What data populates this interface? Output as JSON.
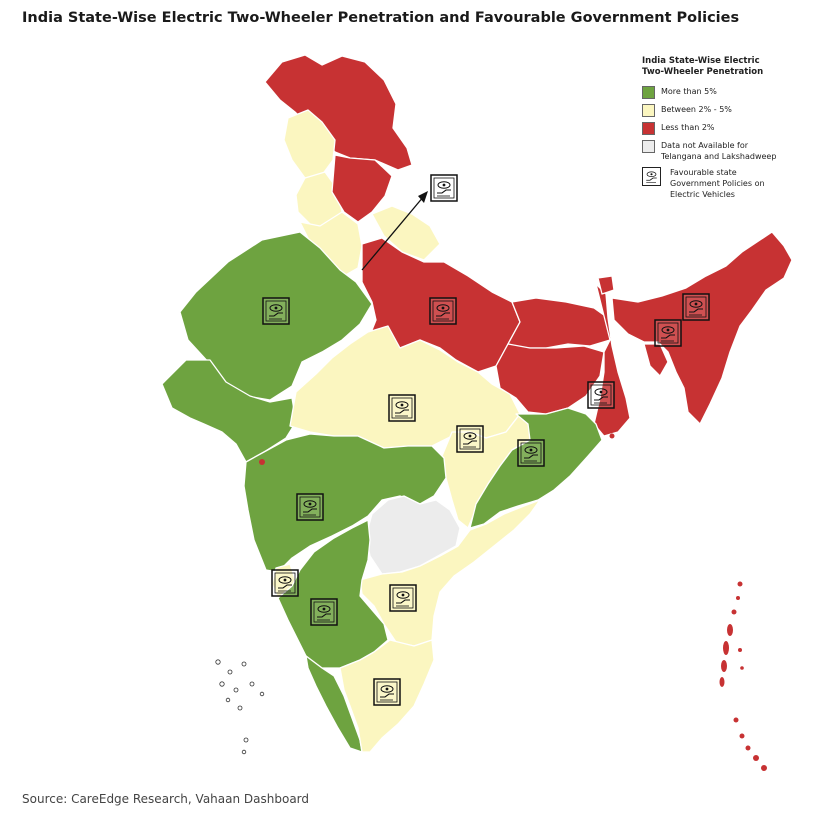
{
  "title": "India State-Wise Electric Two-Wheeler Penetration and Favourable Government Policies",
  "legend": {
    "title_line1": "India State-Wise Electric",
    "title_line2": "Two-Wheeler Penetration",
    "items": [
      {
        "label": "More than 5%",
        "color": "#6ea340"
      },
      {
        "label": "Between 2% - 5%",
        "color": "#fbf6c0"
      },
      {
        "label": "Less than 2%",
        "color": "#c73233"
      },
      {
        "label_line1": "Data not Available for",
        "label_line2": "Telangana and Lakshadweep",
        "color": "#ececec"
      }
    ],
    "policy": {
      "label_line1": "Favourable state",
      "label_line2": "Government Policies on",
      "label_line3": "Electric Vehicles",
      "icon": "ev-policy-icon"
    }
  },
  "colors": {
    "green": "#6ea340",
    "yellow": "#fbf6c0",
    "red": "#c73233",
    "grey": "#ececec",
    "border": "#ffffff"
  },
  "source": "Source: CareEdge Research, Vahaan Dashboard"
}
